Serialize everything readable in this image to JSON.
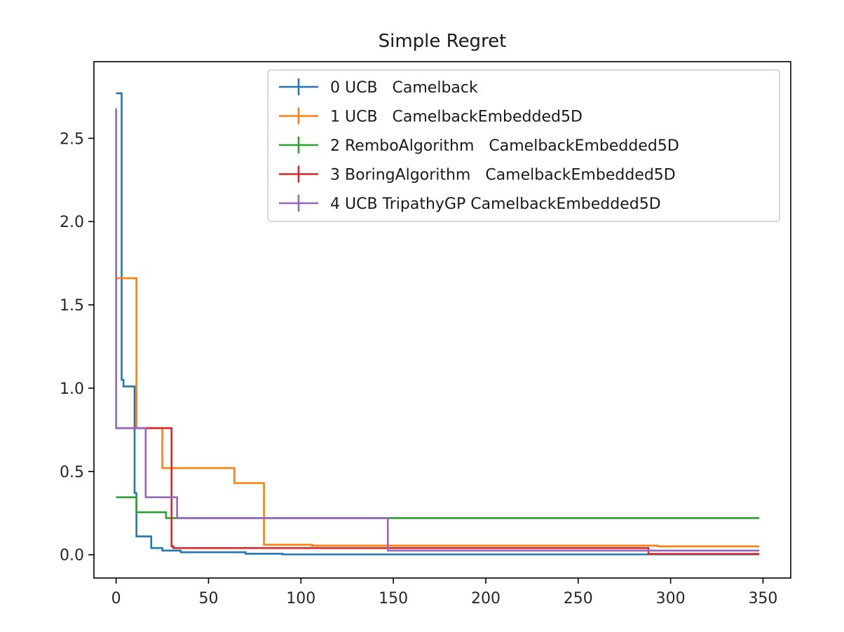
{
  "chart_data": {
    "type": "line",
    "title": "Simple Regret",
    "xlabel": "",
    "ylabel": "",
    "xlim": [
      -12,
      365
    ],
    "ylim": [
      -0.14,
      2.96
    ],
    "xticks": [
      0,
      50,
      100,
      150,
      200,
      250,
      300,
      350
    ],
    "yticks": [
      0.0,
      0.5,
      1.0,
      1.5,
      2.0,
      2.5
    ],
    "xtick_labels": [
      "0",
      "50",
      "100",
      "150",
      "200",
      "250",
      "300",
      "350"
    ],
    "ytick_labels": [
      "0.0",
      "0.5",
      "1.0",
      "1.5",
      "2.0",
      "2.5"
    ],
    "grid": false,
    "legend_placement": "upper-right",
    "series": [
      {
        "name": "0 UCB   Camelback",
        "color": "#1f77b4",
        "points": [
          [
            0,
            2.77
          ],
          [
            3,
            2.77
          ],
          [
            3,
            1.05
          ],
          [
            4,
            1.05
          ],
          [
            4,
            1.01
          ],
          [
            10,
            1.01
          ],
          [
            10,
            0.37
          ],
          [
            11,
            0.37
          ],
          [
            11,
            0.11
          ],
          [
            19,
            0.11
          ],
          [
            19,
            0.04
          ],
          [
            25,
            0.04
          ],
          [
            25,
            0.025
          ],
          [
            35,
            0.025
          ],
          [
            35,
            0.015
          ],
          [
            70,
            0.015
          ],
          [
            70,
            0.006
          ],
          [
            90,
            0.006
          ],
          [
            90,
            0.002
          ],
          [
            348,
            0.002
          ]
        ]
      },
      {
        "name": "1 UCB   CamelbackEmbedded5D",
        "color": "#ff7f0e",
        "points": [
          [
            0,
            1.66
          ],
          [
            11,
            1.66
          ],
          [
            11,
            0.76
          ],
          [
            25,
            0.76
          ],
          [
            25,
            0.52
          ],
          [
            64,
            0.52
          ],
          [
            64,
            0.43
          ],
          [
            80,
            0.43
          ],
          [
            80,
            0.06
          ],
          [
            106,
            0.06
          ],
          [
            106,
            0.055
          ],
          [
            293,
            0.055
          ],
          [
            293,
            0.05
          ],
          [
            348,
            0.05
          ]
        ]
      },
      {
        "name": "2 RemboAlgorithm   CamelbackEmbedded5D",
        "color": "#2ca02c",
        "points": [
          [
            0,
            0.345
          ],
          [
            11,
            0.345
          ],
          [
            11,
            0.255
          ],
          [
            27,
            0.255
          ],
          [
            27,
            0.22
          ],
          [
            348,
            0.22
          ]
        ]
      },
      {
        "name": "3 BoringAlgorithm   CamelbackEmbedded5D",
        "color": "#d62728",
        "points": [
          [
            0,
            0.76
          ],
          [
            30,
            0.76
          ],
          [
            30,
            0.05
          ],
          [
            31,
            0.05
          ],
          [
            31,
            0.04
          ],
          [
            288,
            0.04
          ],
          [
            288,
            0.005
          ],
          [
            348,
            0.005
          ]
        ]
      },
      {
        "name": "4 UCB TripathyGP CamelbackEmbedded5D",
        "color": "#9467bd",
        "points": [
          [
            0,
            2.68
          ],
          [
            0,
            0.76
          ],
          [
            16,
            0.76
          ],
          [
            16,
            0.345
          ],
          [
            33,
            0.345
          ],
          [
            33,
            0.22
          ],
          [
            147,
            0.22
          ],
          [
            147,
            0.025
          ],
          [
            348,
            0.025
          ]
        ]
      }
    ]
  }
}
